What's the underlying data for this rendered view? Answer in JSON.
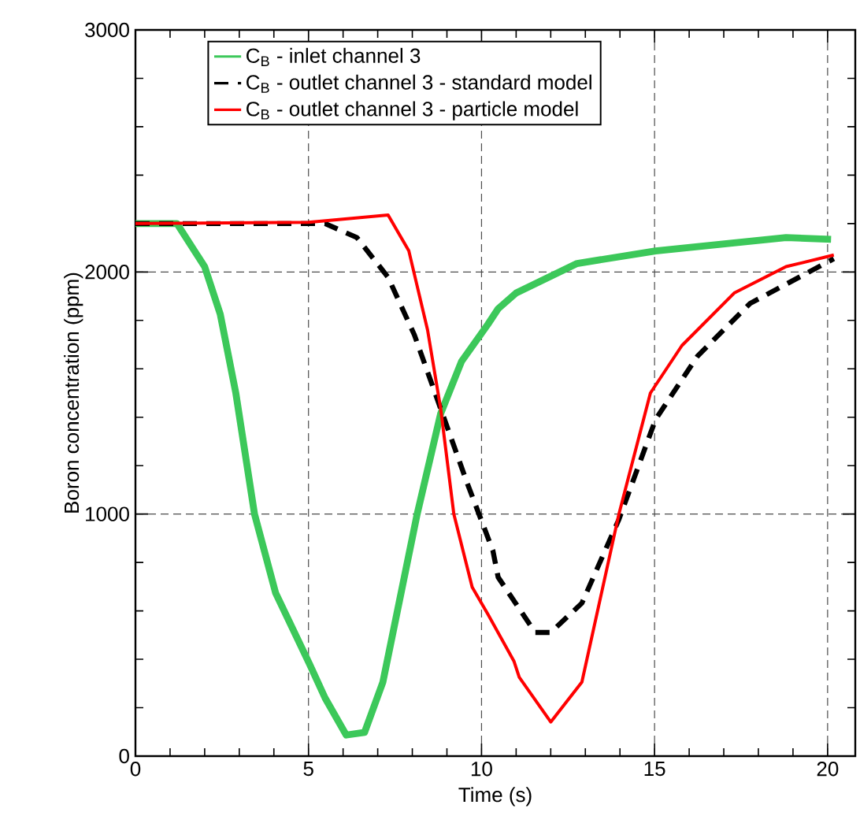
{
  "chart_data": {
    "type": "line",
    "xlabel": "Time (s)",
    "ylabel": "Boron concentration (ppm)",
    "xlim": [
      0,
      20.8
    ],
    "ylim": [
      0,
      3000
    ],
    "xticks": [
      0,
      5,
      10,
      15,
      20
    ],
    "yticks": [
      0,
      1000,
      2000,
      3000
    ],
    "grid": true,
    "legend": "top",
    "line_style": "solid",
    "marker": "none",
    "series": [
      {
        "name": "C$_{B}$ - inlet channel 3",
        "color": "#3cc85a",
        "x": [
          0,
          1.2,
          2.0,
          2.45,
          2.9,
          3.44,
          4.05,
          5.03,
          5.48,
          6.09,
          6.62,
          7.15,
          8.14,
          8.82,
          9.42,
          10.18,
          10.48,
          11.0,
          12.76,
          15.03,
          17.3,
          18.8,
          20.1
        ],
        "values": [
          2200,
          2200,
          2022,
          1826,
          1500,
          1000,
          674,
          380,
          240,
          87,
          98,
          306,
          1000,
          1415,
          1630,
          1783,
          1848,
          1913,
          2035,
          2087,
          2120,
          2142,
          2135
        ]
      },
      {
        "name": "C$_{B}$ - outlet channel 3 - standard model",
        "color": "#000000",
        "line_style": "dashed",
        "x": [
          0,
          5.48,
          6.4,
          7.3,
          8.06,
          8.82,
          9.58,
          10.33,
          10.48,
          11.55,
          12.0,
          12.9,
          13.97,
          15.03,
          16.24,
          17.76,
          20.18
        ],
        "values": [
          2200,
          2200,
          2142,
          1978,
          1740,
          1435,
          1130,
          848,
          739,
          511,
          511,
          632,
          978,
          1391,
          1652,
          1870,
          2055
        ]
      },
      {
        "name": "C$_{B}$ - outlet channel 3 - particle model",
        "color": "#ff0000",
        "x": [
          0,
          5,
          7.3,
          7.9,
          8.44,
          8.82,
          9.2,
          9.73,
          10.18,
          10.94,
          11.09,
          12.0,
          12.9,
          13.97,
          14.88,
          15.79,
          17.3,
          18.8,
          20.18
        ],
        "values": [
          2200,
          2205,
          2235,
          2087,
          1761,
          1435,
          1000,
          698,
          587,
          391,
          326,
          141,
          306,
          1000,
          1500,
          1696,
          1913,
          2022,
          2070
        ]
      }
    ]
  }
}
